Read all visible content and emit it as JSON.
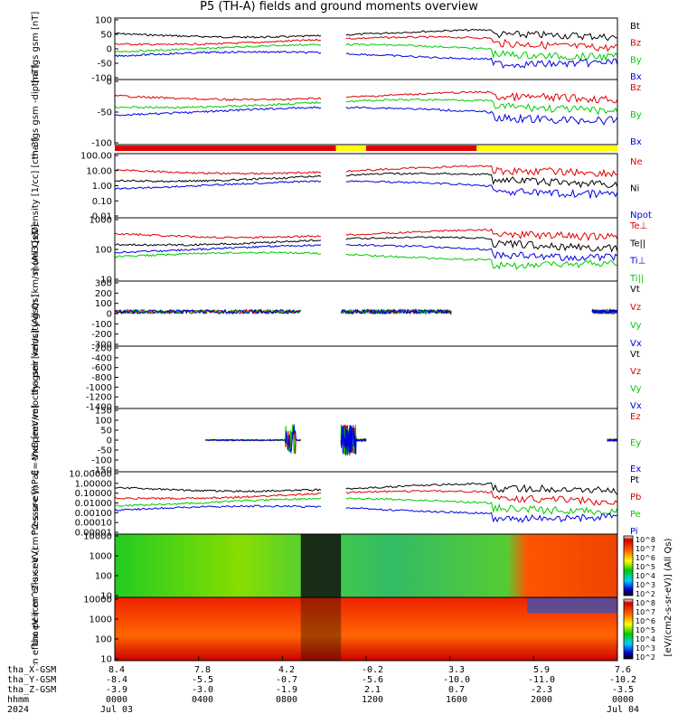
{
  "title": "P5 (TH-A) fields and ground moments overview",
  "colors": {
    "black": "#000000",
    "red": "#e00000",
    "green": "#00cc00",
    "blue": "#0000e0",
    "yellow": "#ffff00"
  },
  "colorbar": {
    "unit_label": "[eV/(cm2-s-sr-eV)] (All Qs)",
    "top_ticks": [
      "10^8",
      "10^7",
      "10^6",
      "10^5",
      "10^4",
      "10^3",
      "10^2"
    ],
    "bottom_ticks": [
      "10^8",
      "10^7",
      "10^6",
      "10^5",
      "10^4",
      "10^3",
      "10^2"
    ]
  },
  "footer": {
    "rows": [
      {
        "label": "tha_X-GSM",
        "values": [
          "8.4",
          "7.8",
          "4.2",
          "-0.2",
          "3.3",
          "5.9",
          "7.6"
        ]
      },
      {
        "label": "tha_Y-GSM",
        "values": [
          "-8.4",
          "-5.5",
          "-0.7",
          "-5.6",
          "-10.0",
          "-11.0",
          "-10.2"
        ]
      },
      {
        "label": "tha_Z-GSM",
        "values": [
          "-3.9",
          "-3.0",
          "-1.9",
          "2.1",
          "0.7",
          "-2.3",
          "-3.5"
        ]
      },
      {
        "label": "hhmm",
        "values": [
          "0000",
          "0400",
          "0800",
          "1200",
          "1600",
          "2000",
          "0000"
        ]
      },
      {
        "label": "2024",
        "values": [
          "Jul 03",
          "",
          "",
          "",
          "",
          "",
          "Jul 04"
        ]
      }
    ]
  },
  "chart_data": [
    {
      "type": "line",
      "panel": "fgs_gsm",
      "ylabel": "tha fgs gsm [nT]",
      "ylim": [
        -100,
        100
      ],
      "yticks": [
        "100",
        "50",
        "0",
        "-50",
        "-100"
      ],
      "series": [
        {
          "name": "Bt"
        },
        {
          "name": "Bz"
        },
        {
          "name": "By"
        },
        {
          "name": "Bx"
        }
      ]
    },
    {
      "type": "line",
      "panel": "fgs_gsm_dip",
      "ylabel": "tha fgs gsm -dip [nT]",
      "ylim": [
        -120,
        40
      ],
      "yticks": [
        "0",
        "-50",
        "-100"
      ],
      "series": [
        {
          "name": "Bz"
        },
        {
          "name": "By"
        },
        {
          "name": "Bx"
        }
      ]
    },
    {
      "type": "line",
      "panel": "density",
      "ylabel": "Density [1/cc] [cm-3]",
      "yscale": "log",
      "ylim": [
        0.005,
        200
      ],
      "yticks": [
        "100.00",
        "10.00",
        "1.00",
        "0.10",
        "0.01"
      ],
      "series": [
        {
          "name": "Ne"
        },
        {
          "name": "Ni"
        },
        {
          "name": "Npot"
        }
      ]
    },
    {
      "type": "line",
      "panel": "temperature",
      "ylabel": "mom3 [eV]",
      "yscale": "log",
      "ylim": [
        10,
        5000
      ],
      "yticks": [
        "1000",
        "100",
        "10"
      ],
      "series": [
        {
          "name": "Te⊥"
        },
        {
          "name": "Te||"
        },
        {
          "name": "Ti⊥"
        },
        {
          "name": "Ti||"
        }
      ]
    },
    {
      "type": "line",
      "panel": "peir_velocity",
      "ylabel": "tha peir velocity gsm [km/s] (All Qs)",
      "ylim": [
        -300,
        300
      ],
      "yticks": [
        "300",
        "200",
        "100",
        "0",
        "-100",
        "-200",
        "-300"
      ],
      "series": [
        {
          "name": "Vt"
        },
        {
          "name": "Vz"
        },
        {
          "name": "Vy"
        },
        {
          "name": "Vx"
        }
      ]
    },
    {
      "type": "line",
      "panel": "peer_velocity",
      "ylabel": "tha peer velocity gsm [km/s] (All Qs)",
      "ylim": [
        -1500,
        -100
      ],
      "yticks": [
        "-200",
        "-400",
        "-600",
        "-800",
        "-1000",
        "-1200",
        "-1400"
      ],
      "series": [
        {
          "name": "Vt"
        },
        {
          "name": "Vz"
        },
        {
          "name": "Vy"
        },
        {
          "name": "Vx"
        }
      ]
    },
    {
      "type": "line",
      "panel": "efield",
      "ylabel": "E=-VxB [mV/m]",
      "ylim": [
        -150,
        150
      ],
      "yticks": [
        "150",
        "100",
        "50",
        "0",
        "-50",
        "-100",
        "-150"
      ],
      "series": [
        {
          "name": "Ez"
        },
        {
          "name": "Ey"
        },
        {
          "name": "Ex"
        }
      ]
    },
    {
      "type": "line",
      "panel": "pressure",
      "ylabel": "Pressure [nPa]",
      "yscale": "log",
      "ylim": [
        5e-06,
        20
      ],
      "yticks": [
        "10.00000",
        "1.00000",
        "0.10000",
        "0.01000",
        "0.00100",
        "0.00010",
        "0.00001"
      ],
      "series": [
        {
          "name": "Pt"
        },
        {
          "name": "Pb"
        },
        {
          "name": "Pe"
        },
        {
          "name": "Pi"
        }
      ]
    },
    {
      "type": "heatmap",
      "panel": "peir_spectrogram",
      "ylabel": "tha peir en eflux eV (cm^2-s-sr-eV)",
      "yscale": "log",
      "yticks": [
        "10000",
        "1000",
        "100",
        "10"
      ]
    },
    {
      "type": "heatmap",
      "panel": "peer_spectrogram",
      "ylabel": "tha peer en eflux eV (cm^2-s-sr-eV)",
      "yscale": "log",
      "yticks": [
        "10000",
        "1000",
        "100",
        "10"
      ]
    }
  ]
}
